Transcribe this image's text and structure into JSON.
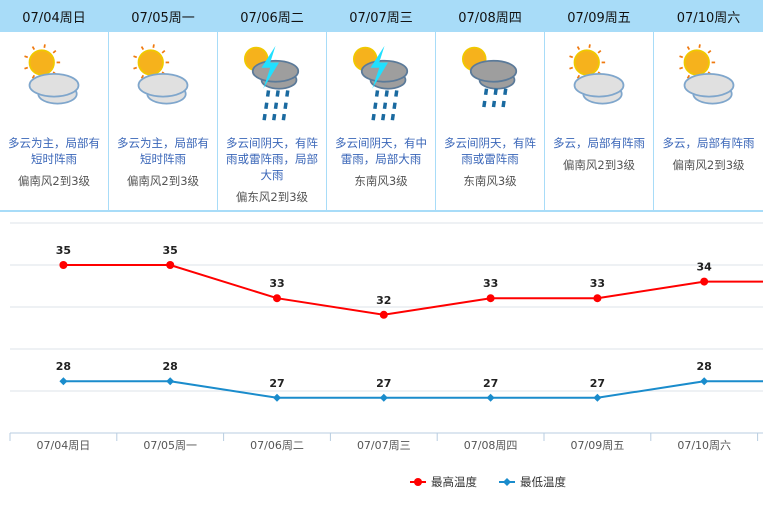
{
  "days": [
    {
      "date": "07/04周日",
      "icon": "partly-cloudy-icon",
      "desc": "多云为主，局部有短时阵雨",
      "wind": "偏南风2到3级"
    },
    {
      "date": "07/05周一",
      "icon": "partly-cloudy-icon",
      "desc": "多云为主，局部有短时阵雨",
      "wind": "偏南风2到3级"
    },
    {
      "date": "07/06周二",
      "icon": "thunderstorm-icon",
      "desc": "多云间阴天，有阵雨或雷阵雨，局部大雨",
      "wind": "偏东风2到3级"
    },
    {
      "date": "07/07周三",
      "icon": "thunderstorm-icon",
      "desc": "多云间阴天，有中雷雨，局部大雨",
      "wind": "东南风3级"
    },
    {
      "date": "07/08周四",
      "icon": "sun-rain-icon",
      "desc": "多云间阴天，有阵雨或雷阵雨",
      "wind": "东南风3级"
    },
    {
      "date": "07/09周五",
      "icon": "partly-cloudy-icon",
      "desc": "多云，局部有阵雨",
      "wind": "偏南风2到3级"
    },
    {
      "date": "07/10周六",
      "icon": "partly-cloudy-icon",
      "desc": "多云，局部有阵雨",
      "wind": "偏南风2到3级"
    }
  ],
  "chart_data": {
    "type": "line",
    "categories": [
      "07/04周日",
      "07/05周一",
      "07/06周二",
      "07/07周三",
      "07/08周四",
      "07/09周五",
      "07/10周六"
    ],
    "series": [
      {
        "name": "最高温度",
        "color": "#ff0000",
        "values": [
          35,
          35,
          33,
          32,
          33,
          33,
          34
        ]
      },
      {
        "name": "最低温度",
        "color": "#1a8ccc",
        "values": [
          28,
          28,
          27,
          27,
          27,
          27,
          28
        ]
      }
    ],
    "grid": true,
    "legend": "bottom-center"
  }
}
